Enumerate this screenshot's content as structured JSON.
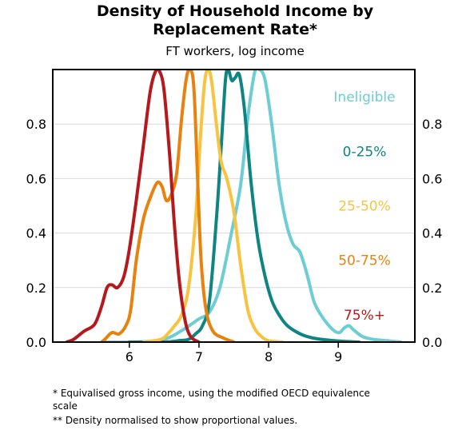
{
  "title_line1": "Density of Household Income by",
  "title_line2": "Replacement Rate*",
  "subtitle": "FT workers, log income",
  "footnotes": {
    "note1": "* Equivalised gross income, using the modified OECD equivalence scale",
    "note2": "** Density normalised to show proportional values."
  },
  "chart_data": {
    "type": "line",
    "title": "Density of Household Income by Replacement Rate*",
    "subtitle": "FT workers, log income",
    "xlabel": "",
    "ylabel": "",
    "xlim": [
      4.9,
      10.1
    ],
    "ylim": [
      0,
      1.0
    ],
    "x_ticks": [
      "6",
      "7",
      "8",
      "9"
    ],
    "x_tick_values": [
      6,
      7,
      8,
      9
    ],
    "y_ticks": [
      "0.0",
      "0.2",
      "0.4",
      "0.6",
      "0.8"
    ],
    "y_tick_values": [
      0,
      0.2,
      0.4,
      0.6,
      0.8
    ],
    "grid": "horizontal",
    "legend": "right, labels inline",
    "series": [
      {
        "name": "Ineligible",
        "color": "#6ccdd4",
        "points": [
          [
            5.6,
            0
          ],
          [
            6.0,
            0
          ],
          [
            6.4,
            0.005
          ],
          [
            6.6,
            0.02
          ],
          [
            6.8,
            0.05
          ],
          [
            7.0,
            0.085
          ],
          [
            7.15,
            0.11
          ],
          [
            7.3,
            0.2
          ],
          [
            7.45,
            0.38
          ],
          [
            7.6,
            0.58
          ],
          [
            7.7,
            0.82
          ],
          [
            7.8,
            0.99
          ],
          [
            7.87,
            1.0
          ],
          [
            7.95,
            0.96
          ],
          [
            8.05,
            0.79
          ],
          [
            8.15,
            0.58
          ],
          [
            8.25,
            0.44
          ],
          [
            8.35,
            0.36
          ],
          [
            8.45,
            0.33
          ],
          [
            8.55,
            0.25
          ],
          [
            8.65,
            0.15
          ],
          [
            8.75,
            0.1
          ],
          [
            8.85,
            0.065
          ],
          [
            8.95,
            0.04
          ],
          [
            9.02,
            0.035
          ],
          [
            9.08,
            0.05
          ],
          [
            9.15,
            0.06
          ],
          [
            9.22,
            0.045
          ],
          [
            9.35,
            0.02
          ],
          [
            9.5,
            0.01
          ],
          [
            9.7,
            0.005
          ],
          [
            9.9,
            0
          ]
        ]
      },
      {
        "name": "0-25%",
        "color": "#0e8583",
        "points": [
          [
            6.0,
            0
          ],
          [
            6.5,
            0
          ],
          [
            6.7,
            0.005
          ],
          [
            6.85,
            0.01
          ],
          [
            6.95,
            0.03
          ],
          [
            7.05,
            0.06
          ],
          [
            7.15,
            0.15
          ],
          [
            7.25,
            0.45
          ],
          [
            7.32,
            0.72
          ],
          [
            7.38,
            0.96
          ],
          [
            7.42,
            1.0
          ],
          [
            7.47,
            0.96
          ],
          [
            7.52,
            0.97
          ],
          [
            7.58,
            0.98
          ],
          [
            7.65,
            0.86
          ],
          [
            7.75,
            0.58
          ],
          [
            7.85,
            0.37
          ],
          [
            7.95,
            0.24
          ],
          [
            8.05,
            0.15
          ],
          [
            8.15,
            0.1
          ],
          [
            8.25,
            0.065
          ],
          [
            8.35,
            0.045
          ],
          [
            8.5,
            0.025
          ],
          [
            8.7,
            0.012
          ],
          [
            9.0,
            0.004
          ],
          [
            9.3,
            0
          ]
        ]
      },
      {
        "name": "25-50%",
        "color": "#f8c340",
        "points": [
          [
            6.2,
            0
          ],
          [
            6.45,
            0.01
          ],
          [
            6.55,
            0.03
          ],
          [
            6.65,
            0.06
          ],
          [
            6.75,
            0.1
          ],
          [
            6.85,
            0.2
          ],
          [
            6.95,
            0.45
          ],
          [
            7.02,
            0.75
          ],
          [
            7.08,
            0.95
          ],
          [
            7.13,
            1.0
          ],
          [
            7.18,
            0.96
          ],
          [
            7.25,
            0.8
          ],
          [
            7.32,
            0.66
          ],
          [
            7.4,
            0.6
          ],
          [
            7.5,
            0.48
          ],
          [
            7.6,
            0.28
          ],
          [
            7.7,
            0.12
          ],
          [
            7.8,
            0.05
          ],
          [
            7.9,
            0.02
          ],
          [
            8.0,
            0.005
          ],
          [
            8.2,
            0
          ]
        ]
      },
      {
        "name": "50-75%",
        "color": "#e8820e",
        "points": [
          [
            5.6,
            0
          ],
          [
            5.65,
            0.01
          ],
          [
            5.75,
            0.035
          ],
          [
            5.85,
            0.03
          ],
          [
            5.95,
            0.06
          ],
          [
            6.02,
            0.12
          ],
          [
            6.1,
            0.3
          ],
          [
            6.2,
            0.45
          ],
          [
            6.3,
            0.53
          ],
          [
            6.4,
            0.585
          ],
          [
            6.47,
            0.57
          ],
          [
            6.53,
            0.52
          ],
          [
            6.6,
            0.54
          ],
          [
            6.68,
            0.62
          ],
          [
            6.75,
            0.82
          ],
          [
            6.82,
            0.97
          ],
          [
            6.88,
            1.0
          ],
          [
            6.93,
            0.92
          ],
          [
            6.98,
            0.6
          ],
          [
            7.03,
            0.3
          ],
          [
            7.1,
            0.12
          ],
          [
            7.2,
            0.04
          ],
          [
            7.35,
            0.015
          ],
          [
            7.5,
            0
          ]
        ]
      },
      {
        "name": "75%+",
        "color": "#b5191d",
        "points": [
          [
            5.1,
            0
          ],
          [
            5.2,
            0.01
          ],
          [
            5.35,
            0.04
          ],
          [
            5.5,
            0.065
          ],
          [
            5.6,
            0.13
          ],
          [
            5.68,
            0.2
          ],
          [
            5.75,
            0.21
          ],
          [
            5.83,
            0.2
          ],
          [
            5.92,
            0.24
          ],
          [
            6.0,
            0.34
          ],
          [
            6.1,
            0.52
          ],
          [
            6.2,
            0.72
          ],
          [
            6.3,
            0.92
          ],
          [
            6.38,
            0.995
          ],
          [
            6.44,
            0.99
          ],
          [
            6.5,
            0.92
          ],
          [
            6.58,
            0.68
          ],
          [
            6.65,
            0.42
          ],
          [
            6.72,
            0.22
          ],
          [
            6.8,
            0.08
          ],
          [
            6.88,
            0.02
          ],
          [
            7.0,
            0
          ]
        ]
      }
    ]
  }
}
